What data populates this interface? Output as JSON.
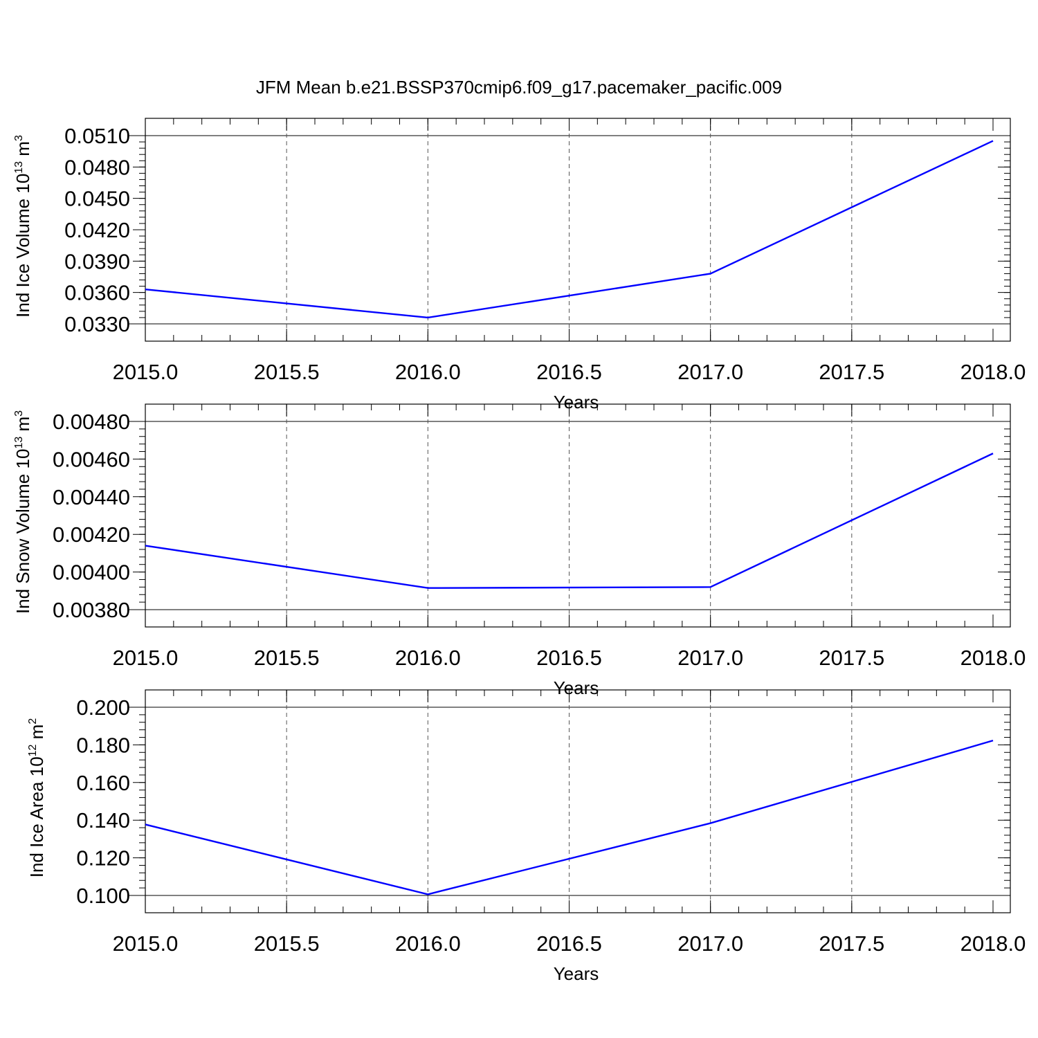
{
  "figure_title": "JFM Mean b.e21.BSSP370cmip6.f09_g17.pacemaker_pacific.009",
  "colors": {
    "series": "#0000ff",
    "axis": "#000000",
    "grid": "#555555"
  },
  "chart_data": [
    {
      "type": "line",
      "title": "",
      "xlabel": "Years",
      "ylabel_base": "Ind Ice Volume 10",
      "ylabel_exp": "13",
      "ylabel_unit": " m",
      "ylabel_unit_exp": "3",
      "xlim": [
        2015.0,
        2018.0
      ],
      "ylim": [
        0.033,
        0.051
      ],
      "xticks": [
        "2015.0",
        "2015.5",
        "2016.0",
        "2016.5",
        "2017.0",
        "2017.5",
        "2018.0"
      ],
      "yticks": [
        "0.0330",
        "0.0360",
        "0.0390",
        "0.0420",
        "0.0450",
        "0.0480",
        "0.0510"
      ],
      "x": [
        2015,
        2016,
        2017,
        2018
      ],
      "series": [
        {
          "values": [
            0.0363,
            0.0336,
            0.0378,
            0.0505
          ]
        }
      ],
      "grid": "vertical dashed"
    },
    {
      "type": "line",
      "title": "",
      "xlabel": "Years",
      "ylabel_base": "Ind Snow Volume 10",
      "ylabel_exp": "13",
      "ylabel_unit": " m",
      "ylabel_unit_exp": "3",
      "xlim": [
        2015.0,
        2018.0
      ],
      "ylim": [
        0.0038,
        0.0048
      ],
      "xticks": [
        "2015.0",
        "2015.5",
        "2016.0",
        "2016.5",
        "2017.0",
        "2017.5",
        "2018.0"
      ],
      "yticks": [
        "0.00380",
        "0.00400",
        "0.00420",
        "0.00440",
        "0.00460",
        "0.00480"
      ],
      "x": [
        2015,
        2016,
        2017,
        2018
      ],
      "series": [
        {
          "values": [
            0.00414,
            0.003915,
            0.00392,
            0.00463
          ]
        }
      ],
      "grid": "vertical dashed"
    },
    {
      "type": "line",
      "title": "",
      "xlabel": "Years",
      "ylabel_base": "Ind Ice Area 10",
      "ylabel_exp": "12",
      "ylabel_unit": " m",
      "ylabel_unit_exp": "2",
      "xlim": [
        2015.0,
        2018.0
      ],
      "ylim": [
        0.1,
        0.2
      ],
      "xticks": [
        "2015.0",
        "2015.5",
        "2016.0",
        "2016.5",
        "2017.0",
        "2017.5",
        "2018.0"
      ],
      "yticks": [
        "0.100",
        "0.120",
        "0.140",
        "0.160",
        "0.180",
        "0.200"
      ],
      "x": [
        2015,
        2016,
        2017,
        2018
      ],
      "series": [
        {
          "values": [
            0.1377,
            0.1006,
            0.1384,
            0.1823
          ]
        }
      ],
      "grid": "vertical dashed"
    }
  ]
}
